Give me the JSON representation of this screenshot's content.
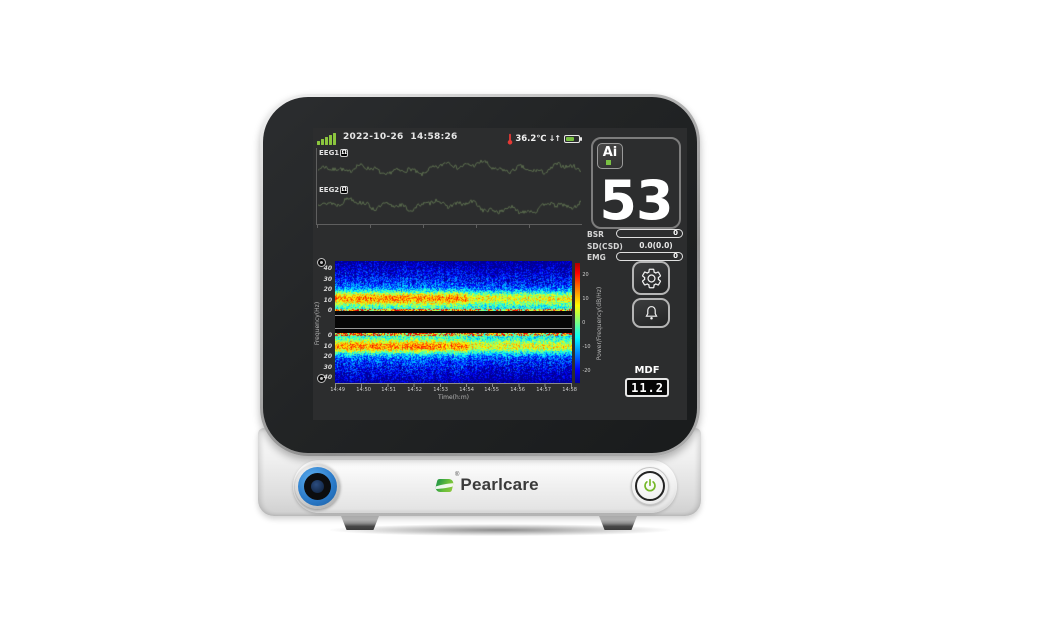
{
  "status_bar": {
    "signal_icon": "signal-strength-bars",
    "datetime": "2022-10-26  14:58:26",
    "thermometer_icon": "thermometer",
    "temperature": "36.2℃",
    "arrows": "↓↑",
    "battery_icon": "battery-partial-green"
  },
  "eeg_panel": {
    "channels": [
      {
        "label": "EEG1",
        "badge": "Ω"
      },
      {
        "label": "EEG2",
        "badge": "Ω"
      }
    ]
  },
  "right_panel": {
    "ai_badge": "Ai",
    "depth_index": "53",
    "rows": [
      {
        "label": "BSR",
        "value": "0"
      },
      {
        "label": "SD(CSD)",
        "value": "0.0(0.0)"
      },
      {
        "label": "EMG",
        "value": "0"
      }
    ],
    "gear_icon": "settings-gear",
    "bell_icon": "alarm-bell",
    "mdf": {
      "label": "MDF",
      "value": "11.2"
    }
  },
  "front_panel": {
    "logo_mark": "®",
    "logo_text": "Pearlcare",
    "knob_icon": "rotary-knob",
    "power_icon": "power-symbol"
  },
  "chart_data": [
    {
      "type": "line",
      "title": "EEG1 waveform",
      "color": "#5c6e4f",
      "seed": 7,
      "noise_like": true
    },
    {
      "type": "line",
      "title": "EEG2 waveform",
      "color": "#5c6e4f",
      "seed": 13,
      "noise_like": true
    },
    {
      "type": "heatmap",
      "title": "Dual-channel EEG density spectrogram",
      "xlabel": "Time(h:m)",
      "x_ticks": [
        "14:49",
        "14:50",
        "14:51",
        "14:52",
        "14:53",
        "14:54",
        "14:55",
        "14:56",
        "14:57",
        "14:58"
      ],
      "ylabel": "Frequency(Hz)",
      "y_ticks_upper": [
        "40",
        "30",
        "20",
        "10",
        "0"
      ],
      "y_ticks_lower": [
        "0",
        "10",
        "20",
        "30",
        "40"
      ],
      "y_range_hz": [
        0,
        45
      ],
      "colorbar_label": "Power/Frequency(dB/Hz)",
      "colorbar_ticks": [
        "20",
        "10",
        "0",
        "-10",
        "-20"
      ],
      "colorbar_range_db": [
        25,
        -25
      ],
      "features": {
        "high_power_band_hz": [
          8,
          16
        ],
        "edge_hot_band_hz": [
          0,
          2
        ],
        "dimmer_after": "14:53"
      },
      "seed_upper": 3,
      "seed_lower": 11
    }
  ]
}
